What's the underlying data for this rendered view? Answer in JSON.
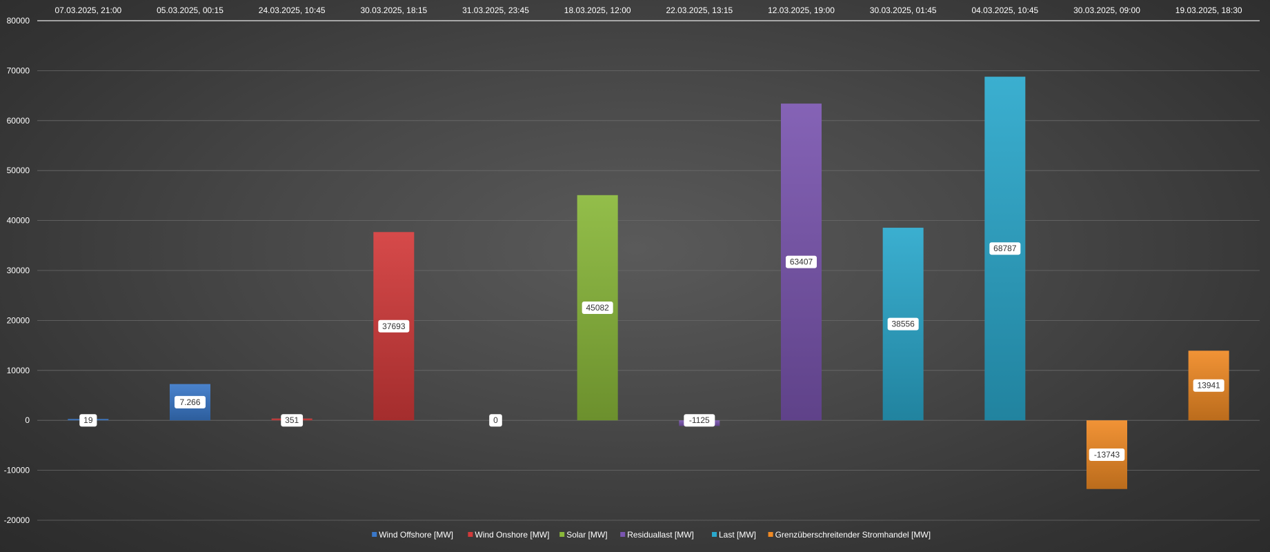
{
  "chart_data": {
    "type": "bar",
    "categories": [
      "07.03.2025, 21:00",
      "05.03.2025, 00:15",
      "24.03.2025, 10:45",
      "30.03.2025, 18:15",
      "31.03.2025, 23:45",
      "18.03.2025, 12:00",
      "22.03.2025, 13:15",
      "12.03.2025, 19:00",
      "30.03.2025, 01:45",
      "04.03.2025, 10:45",
      "30.03.2025, 09:00",
      "19.03.2025, 18:30"
    ],
    "series": [
      {
        "name": "Wind Offshore [MW]",
        "color": "#3a78c9",
        "points": [
          {
            "index": 0,
            "value": 19,
            "label": "19"
          },
          {
            "index": 1,
            "value": 7266,
            "label": "7.266"
          }
        ]
      },
      {
        "name": "Wind Onshore [MW]",
        "color": "#d23a3a",
        "points": [
          {
            "index": 2,
            "value": 351,
            "label": "351"
          },
          {
            "index": 3,
            "value": 37693,
            "label": "37693"
          }
        ]
      },
      {
        "name": "Solar [MW]",
        "color": "#8ab83a",
        "points": [
          {
            "index": 4,
            "value": 0,
            "label": "0"
          },
          {
            "index": 5,
            "value": 45082,
            "label": "45082"
          }
        ]
      },
      {
        "name": "Residuallast [MW]",
        "color": "#7a55b0",
        "points": [
          {
            "index": 6,
            "value": -1125,
            "label": "-1125"
          },
          {
            "index": 7,
            "value": 63407,
            "label": "63407"
          }
        ]
      },
      {
        "name": "Last [MW]",
        "color": "#2aa8cc",
        "points": [
          {
            "index": 8,
            "value": 38556,
            "label": "38556"
          },
          {
            "index": 9,
            "value": 68787,
            "label": "68787"
          }
        ]
      },
      {
        "name": "Grenzüberschreitender Stromhandel [MW]",
        "color": "#f08a24",
        "points": [
          {
            "index": 10,
            "value": -13743,
            "label": "-13743"
          },
          {
            "index": 11,
            "value": 13941,
            "label": "13941"
          }
        ]
      }
    ],
    "yticks": [
      "80000",
      "70000",
      "60000",
      "50000",
      "40000",
      "30000",
      "20000",
      "10000",
      "0",
      "-10000",
      "-20000"
    ],
    "ylim": [
      -20000,
      80000
    ],
    "grid": true,
    "legend_position": "bottom",
    "category_axis_position": "top"
  }
}
